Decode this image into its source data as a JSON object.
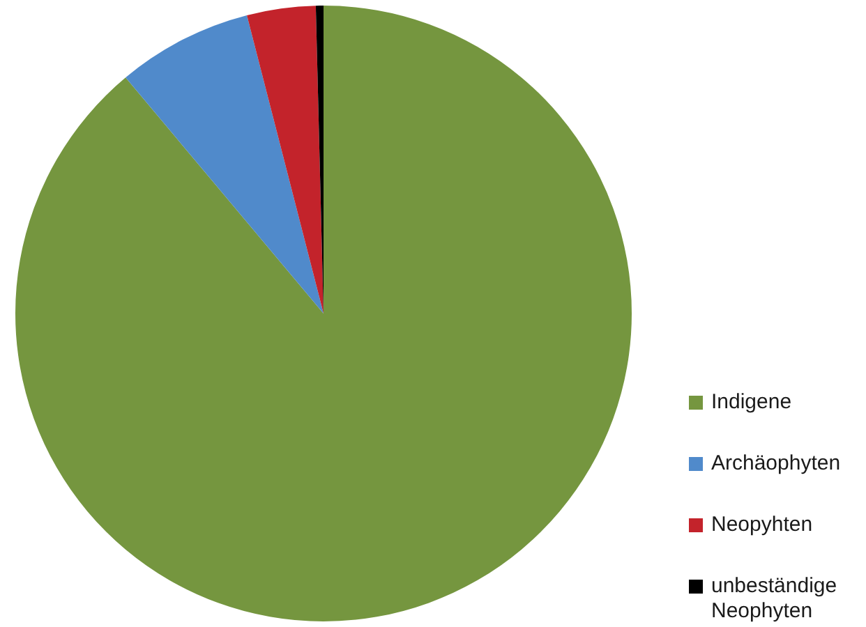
{
  "chart_data": {
    "type": "pie",
    "categories": [
      "Indigene",
      "Archäophyten",
      "Neopyhten",
      "unbeständige Neophyten"
    ],
    "values": [
      88.9,
      7.1,
      3.6,
      0.4
    ],
    "colors": [
      "#75963f",
      "#508acb",
      "#c3232b",
      "#000000"
    ],
    "legend": "right"
  }
}
